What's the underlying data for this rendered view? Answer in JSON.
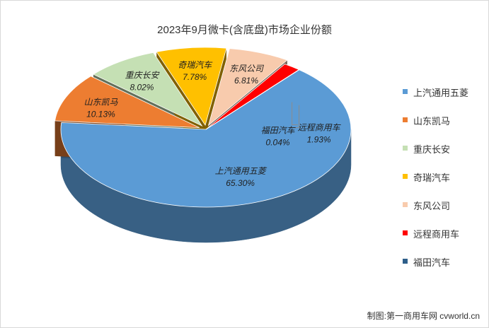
{
  "chart_data": {
    "type": "pie",
    "title": "2023年9月微卡(含底盘)市场企业份额",
    "slices": [
      {
        "label": "上汽通用五菱",
        "value": 65.3,
        "value_label": "65.30%",
        "color": "#5b9bd5"
      },
      {
        "label": "山东凯马",
        "value": 10.13,
        "value_label": "10.13%",
        "color": "#ed7d31"
      },
      {
        "label": "重庆长安",
        "value": 8.02,
        "value_label": "8.02%",
        "color": "#c5e0b4"
      },
      {
        "label": "奇瑞汽车",
        "value": 7.78,
        "value_label": "7.78%",
        "color": "#ffc000"
      },
      {
        "label": "东风公司",
        "value": 6.81,
        "value_label": "6.81%",
        "color": "#f8cbad"
      },
      {
        "label": "远程商用车",
        "value": 1.93,
        "value_label": "1.93%",
        "color": "#ff0000"
      },
      {
        "label": "福田汽车",
        "value": 0.04,
        "value_label": "0.04%",
        "color": "#2e5f8a"
      }
    ],
    "legend_position": "right"
  },
  "source_note": "制图:第一商用车网 cvworld.cn"
}
